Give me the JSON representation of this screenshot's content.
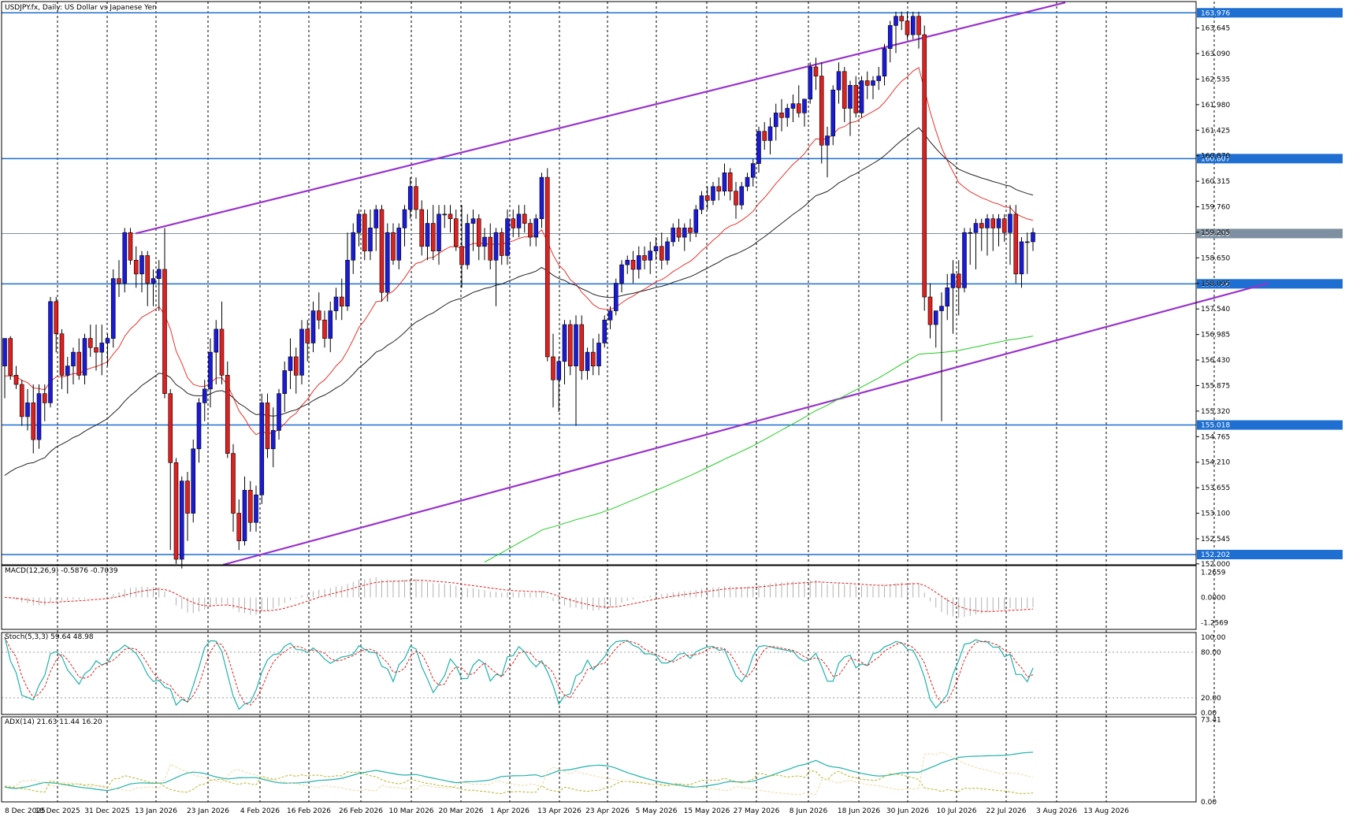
{
  "chart_data": {
    "type": "candlestick",
    "title": "USDJPY.fx, Daily:  US Dollar vs Japanese Yen",
    "x_labels": [
      "8 Dec 2025",
      "18 Dec 2025",
      "31 Dec 2025",
      "13 Jan 2026",
      "23 Jan 2026",
      "4 Feb 2026",
      "16 Feb 2026",
      "26 Feb 2026",
      "10 Mar 2026",
      "20 Mar 2026",
      "1 Apr 2026",
      "13 Apr 2026",
      "23 Apr 2026",
      "5 May 2026",
      "15 May 2026",
      "27 May 2026",
      "8 Jun 2026",
      "18 Jun 2026",
      "30 Jun 2026",
      "10 Jul 2026",
      "22 Jul 2026",
      "3 Aug 2026",
      "13 Aug 2026"
    ],
    "price_axis": {
      "ticks": [
        "163.645",
        "163.090",
        "162.535",
        "161.980",
        "161.425",
        "160.870",
        "160.315",
        "159.760",
        "159.205",
        "158.650",
        "158.095",
        "157.540",
        "156.985",
        "156.430",
        "155.875",
        "155.320",
        "154.765",
        "154.210",
        "153.655",
        "153.100",
        "152.545",
        "152.000"
      ],
      "ylim": [
        151.98,
        164.22
      ]
    },
    "levels": [
      {
        "value": 163.976,
        "label": "163.976",
        "color": "#1e6fd1"
      },
      {
        "value": 160.807,
        "label": "160.807",
        "color": "#1e6fd1"
      },
      {
        "value": 158.086,
        "label": "158.086",
        "color": "#1e6fd1"
      },
      {
        "value": 155.018,
        "label": "155.018",
        "color": "#1e6fd1"
      },
      {
        "value": 152.202,
        "label": "152.202",
        "color": "#1e6fd1"
      }
    ],
    "current_price": {
      "value": 159.179,
      "label": "159.179",
      "color": "#7d8fa0"
    },
    "channel": {
      "color": "#9932cc",
      "upper": [
        [
          0,
          159.18
        ],
        [
          1,
          164.2
        ]
      ],
      "lower": [
        [
          0,
          151.98
        ],
        [
          1,
          158.1
        ]
      ]
    },
    "moving_averages": [
      {
        "color": "#e8342e"
      },
      {
        "color": "#222222"
      },
      {
        "color": "#22cc22"
      }
    ],
    "colors": {
      "bull": "#1a1adb",
      "bear": "#e0201f",
      "grid": "#000000"
    },
    "candles": [
      [
        156.3,
        156.9,
        155.6,
        156.9
      ],
      [
        156.9,
        156.95,
        156.0,
        156.1
      ],
      [
        156.1,
        156.3,
        155.8,
        155.9
      ],
      [
        155.9,
        156.0,
        155.0,
        155.2
      ],
      [
        155.2,
        155.8,
        154.9,
        155.5
      ],
      [
        155.5,
        155.9,
        154.4,
        154.7
      ],
      [
        154.7,
        155.9,
        154.5,
        155.7
      ],
      [
        155.7,
        155.9,
        155.1,
        155.5
      ],
      [
        155.5,
        157.8,
        155.4,
        157.7
      ],
      [
        157.7,
        157.8,
        156.6,
        157.0
      ],
      [
        157.0,
        157.1,
        155.8,
        156.1
      ],
      [
        156.1,
        156.5,
        155.7,
        156.3
      ],
      [
        156.3,
        156.7,
        155.9,
        156.6
      ],
      [
        156.6,
        156.9,
        156.0,
        156.1
      ],
      [
        156.1,
        157.0,
        155.9,
        156.9
      ],
      [
        156.9,
        157.2,
        156.5,
        156.7
      ],
      [
        156.7,
        157.2,
        156.2,
        156.6
      ],
      [
        156.6,
        157.2,
        156.1,
        156.8
      ],
      [
        156.8,
        157.0,
        156.3,
        156.9
      ],
      [
        156.9,
        158.4,
        156.7,
        158.2
      ],
      [
        158.2,
        158.6,
        157.8,
        158.1
      ],
      [
        158.1,
        159.3,
        157.9,
        159.2
      ],
      [
        159.2,
        159.3,
        158.5,
        158.6
      ],
      [
        158.6,
        158.9,
        158.0,
        158.3
      ],
      [
        158.3,
        158.8,
        157.9,
        158.7
      ],
      [
        158.7,
        158.8,
        157.6,
        158.1
      ],
      [
        158.1,
        158.4,
        157.6,
        158.2
      ],
      [
        158.2,
        158.6,
        157.5,
        158.4
      ],
      [
        158.4,
        159.3,
        155.6,
        155.7
      ],
      [
        155.7,
        155.8,
        152.3,
        154.2
      ],
      [
        154.2,
        154.3,
        152.0,
        152.1
      ],
      [
        152.1,
        153.9,
        151.9,
        153.8
      ],
      [
        153.8,
        154.0,
        152.5,
        153.1
      ],
      [
        153.1,
        154.7,
        152.9,
        154.5
      ],
      [
        154.5,
        155.6,
        154.2,
        155.5
      ],
      [
        155.5,
        156.0,
        155.1,
        155.8
      ],
      [
        155.8,
        156.9,
        155.4,
        156.6
      ],
      [
        156.6,
        157.3,
        155.9,
        157.1
      ],
      [
        157.1,
        157.7,
        155.9,
        156.1
      ],
      [
        156.1,
        156.4,
        154.3,
        154.4
      ],
      [
        154.4,
        154.6,
        152.7,
        153.1
      ],
      [
        153.1,
        153.4,
        152.3,
        152.5
      ],
      [
        152.5,
        153.9,
        152.4,
        153.6
      ],
      [
        153.6,
        153.8,
        152.7,
        152.9
      ],
      [
        152.9,
        153.7,
        152.7,
        153.5
      ],
      [
        153.5,
        155.7,
        153.3,
        155.5
      ],
      [
        155.5,
        155.7,
        154.3,
        154.5
      ],
      [
        154.5,
        155.4,
        154.1,
        154.9
      ],
      [
        154.9,
        155.8,
        154.7,
        155.7
      ],
      [
        155.7,
        156.4,
        155.3,
        156.2
      ],
      [
        156.2,
        156.9,
        155.8,
        156.5
      ],
      [
        156.5,
        156.7,
        155.7,
        156.1
      ],
      [
        156.1,
        157.3,
        155.9,
        157.1
      ],
      [
        157.1,
        157.3,
        156.4,
        156.8
      ],
      [
        156.8,
        157.7,
        156.6,
        157.5
      ],
      [
        157.5,
        157.9,
        157.1,
        157.3
      ],
      [
        157.3,
        157.5,
        156.7,
        156.9
      ],
      [
        156.9,
        157.7,
        156.6,
        157.5
      ],
      [
        157.5,
        158.0,
        157.3,
        157.8
      ],
      [
        157.8,
        158.2,
        157.3,
        157.6
      ],
      [
        157.6,
        159.2,
        157.5,
        158.6
      ],
      [
        158.6,
        159.4,
        158.3,
        159.2
      ],
      [
        159.2,
        159.7,
        158.9,
        159.6
      ],
      [
        159.6,
        159.7,
        158.6,
        158.8
      ],
      [
        158.8,
        159.7,
        158.6,
        159.3
      ],
      [
        159.3,
        159.8,
        158.8,
        159.7
      ],
      [
        159.7,
        159.8,
        157.7,
        157.9
      ],
      [
        157.9,
        159.4,
        157.7,
        159.2
      ],
      [
        159.2,
        159.4,
        158.5,
        158.6
      ],
      [
        158.6,
        159.4,
        158.4,
        159.3
      ],
      [
        159.3,
        159.8,
        158.9,
        159.7
      ],
      [
        159.7,
        160.4,
        159.5,
        160.2
      ],
      [
        160.2,
        160.4,
        159.5,
        159.7
      ],
      [
        159.7,
        159.9,
        158.7,
        158.9
      ],
      [
        158.9,
        159.7,
        158.6,
        159.4
      ],
      [
        159.4,
        159.8,
        158.6,
        158.8
      ],
      [
        158.8,
        159.8,
        158.5,
        159.6
      ],
      [
        159.6,
        159.8,
        159.3,
        159.6
      ],
      [
        159.6,
        159.8,
        159.2,
        159.5
      ],
      [
        159.5,
        159.7,
        158.8,
        158.9
      ],
      [
        158.9,
        159.8,
        158.0,
        158.5
      ],
      [
        158.5,
        159.6,
        158.4,
        159.4
      ],
      [
        159.4,
        159.7,
        158.8,
        159.5
      ],
      [
        159.5,
        159.6,
        158.6,
        158.9
      ],
      [
        158.9,
        159.3,
        158.6,
        159.1
      ],
      [
        159.1,
        159.4,
        158.4,
        158.6
      ],
      [
        158.6,
        159.3,
        157.6,
        159.2
      ],
      [
        159.2,
        159.3,
        158.5,
        158.7
      ],
      [
        158.7,
        159.7,
        158.5,
        159.5
      ],
      [
        159.5,
        159.7,
        159.1,
        159.3
      ],
      [
        159.3,
        159.8,
        159.1,
        159.6
      ],
      [
        159.6,
        159.8,
        159.2,
        159.4
      ],
      [
        159.4,
        159.5,
        158.9,
        159.1
      ],
      [
        159.1,
        159.6,
        158.9,
        159.5
      ],
      [
        159.5,
        160.5,
        159.3,
        160.4
      ],
      [
        160.4,
        160.6,
        156.4,
        156.5
      ],
      [
        156.5,
        157.0,
        155.4,
        156.0
      ],
      [
        156.0,
        156.5,
        155.3,
        156.4
      ],
      [
        156.4,
        157.3,
        155.9,
        157.2
      ],
      [
        157.2,
        157.3,
        156.1,
        156.3
      ],
      [
        156.3,
        157.4,
        155.0,
        157.2
      ],
      [
        157.2,
        157.4,
        156.0,
        156.2
      ],
      [
        156.2,
        156.7,
        156.0,
        156.6
      ],
      [
        156.6,
        156.9,
        156.1,
        156.3
      ],
      [
        156.3,
        157.0,
        156.1,
        156.8
      ],
      [
        156.8,
        157.4,
        156.7,
        157.3
      ],
      [
        157.3,
        157.6,
        157.1,
        157.5
      ],
      [
        157.5,
        158.2,
        157.4,
        158.1
      ],
      [
        158.1,
        158.6,
        157.9,
        158.5
      ],
      [
        158.5,
        158.7,
        158.3,
        158.6
      ],
      [
        158.6,
        158.8,
        158.1,
        158.4
      ],
      [
        158.4,
        158.9,
        158.2,
        158.7
      ],
      [
        158.7,
        158.9,
        158.4,
        158.6
      ],
      [
        158.6,
        159.0,
        158.3,
        158.8
      ],
      [
        158.8,
        159.1,
        158.6,
        158.9
      ],
      [
        158.9,
        159.2,
        158.4,
        158.6
      ],
      [
        158.6,
        159.1,
        158.5,
        159.0
      ],
      [
        159.0,
        159.4,
        158.9,
        159.3
      ],
      [
        159.3,
        159.5,
        159.0,
        159.1
      ],
      [
        159.1,
        159.4,
        158.8,
        159.3
      ],
      [
        159.3,
        159.5,
        159.0,
        159.2
      ],
      [
        159.2,
        159.8,
        159.1,
        159.7
      ],
      [
        159.7,
        160.1,
        159.6,
        160.0
      ],
      [
        160.0,
        160.2,
        159.7,
        159.9
      ],
      [
        159.9,
        160.3,
        159.8,
        160.2
      ],
      [
        160.2,
        160.4,
        159.9,
        160.1
      ],
      [
        160.1,
        160.7,
        160.0,
        160.5
      ],
      [
        160.5,
        160.6,
        159.9,
        160.1
      ],
      [
        160.1,
        160.3,
        159.5,
        159.8
      ],
      [
        159.8,
        160.3,
        159.7,
        160.2
      ],
      [
        160.2,
        160.5,
        160.1,
        160.4
      ],
      [
        160.4,
        160.8,
        160.2,
        160.7
      ],
      [
        160.7,
        161.5,
        160.5,
        161.4
      ],
      [
        161.4,
        161.6,
        161.0,
        161.2
      ],
      [
        161.2,
        161.7,
        160.9,
        161.5
      ],
      [
        161.5,
        162.0,
        161.2,
        161.8
      ],
      [
        161.8,
        162.1,
        161.4,
        161.7
      ],
      [
        161.7,
        162.0,
        161.5,
        161.9
      ],
      [
        161.9,
        162.2,
        161.6,
        162.0
      ],
      [
        162.0,
        162.4,
        161.7,
        161.8
      ],
      [
        161.8,
        162.1,
        161.5,
        162.1
      ],
      [
        162.1,
        162.9,
        162.0,
        162.8
      ],
      [
        162.8,
        163.0,
        162.3,
        162.6
      ],
      [
        162.6,
        162.9,
        160.7,
        161.1
      ],
      [
        161.1,
        161.5,
        160.4,
        161.3
      ],
      [
        161.3,
        162.4,
        161.1,
        162.3
      ],
      [
        162.3,
        162.9,
        162.0,
        162.7
      ],
      [
        162.7,
        162.8,
        161.6,
        161.9
      ],
      [
        161.9,
        162.5,
        161.3,
        162.4
      ],
      [
        162.4,
        162.6,
        161.7,
        161.8
      ],
      [
        161.8,
        162.6,
        161.7,
        162.5
      ],
      [
        162.5,
        162.7,
        162.1,
        162.4
      ],
      [
        162.4,
        162.6,
        162.1,
        162.5
      ],
      [
        162.5,
        162.8,
        162.3,
        162.6
      ],
      [
        162.6,
        163.3,
        162.4,
        163.2
      ],
      [
        163.2,
        163.8,
        162.9,
        163.7
      ],
      [
        163.7,
        164.0,
        163.1,
        163.9
      ],
      [
        163.9,
        164.0,
        163.6,
        163.8
      ],
      [
        163.8,
        164.0,
        163.4,
        163.5
      ],
      [
        163.5,
        164.0,
        163.4,
        163.9
      ],
      [
        163.9,
        164.0,
        163.2,
        163.5
      ],
      [
        163.5,
        163.7,
        157.5,
        157.8
      ],
      [
        157.8,
        158.1,
        156.9,
        157.2
      ],
      [
        157.2,
        157.5,
        156.7,
        157.5
      ],
      [
        157.5,
        157.9,
        155.1,
        157.6
      ],
      [
        157.6,
        158.3,
        157.3,
        158.0
      ],
      [
        158.0,
        158.6,
        157.0,
        158.3
      ],
      [
        158.3,
        158.6,
        157.4,
        158.0
      ],
      [
        158.0,
        159.3,
        157.9,
        159.2
      ],
      [
        159.2,
        159.3,
        158.5,
        159.2
      ],
      [
        159.2,
        159.5,
        158.4,
        159.4
      ],
      [
        159.4,
        159.5,
        158.8,
        159.3
      ],
      [
        159.3,
        159.6,
        158.7,
        159.5
      ],
      [
        159.5,
        159.6,
        158.8,
        159.3
      ],
      [
        159.3,
        159.6,
        158.9,
        159.5
      ],
      [
        159.5,
        159.6,
        159.0,
        159.2
      ],
      [
        159.2,
        159.8,
        158.5,
        159.6
      ],
      [
        159.6,
        159.8,
        158.1,
        158.3
      ],
      [
        158.3,
        159.1,
        158.0,
        159.0
      ],
      [
        159.0,
        159.2,
        158.3,
        159.0
      ],
      [
        159.0,
        159.3,
        158.8,
        159.2
      ]
    ],
    "macd": {
      "label": "MACD(12,26,9) -0.5876 -0.7039",
      "ticks": [
        "1.2659",
        "0.0000",
        "-1.2569"
      ],
      "ylim": [
        -1.6,
        1.6
      ]
    },
    "stoch": {
      "label": "Stoch(5,3,3) 59.64 48.98",
      "ticks": [
        "100.00",
        "80.00",
        "20.00",
        "0.00"
      ],
      "ylim": [
        -2,
        106
      ]
    },
    "adx": {
      "label": "ADX(14) 21.63 11.44 16.20",
      "ticks": [
        "73.41",
        "0.00"
      ],
      "ylim": [
        0,
        76
      ]
    }
  }
}
